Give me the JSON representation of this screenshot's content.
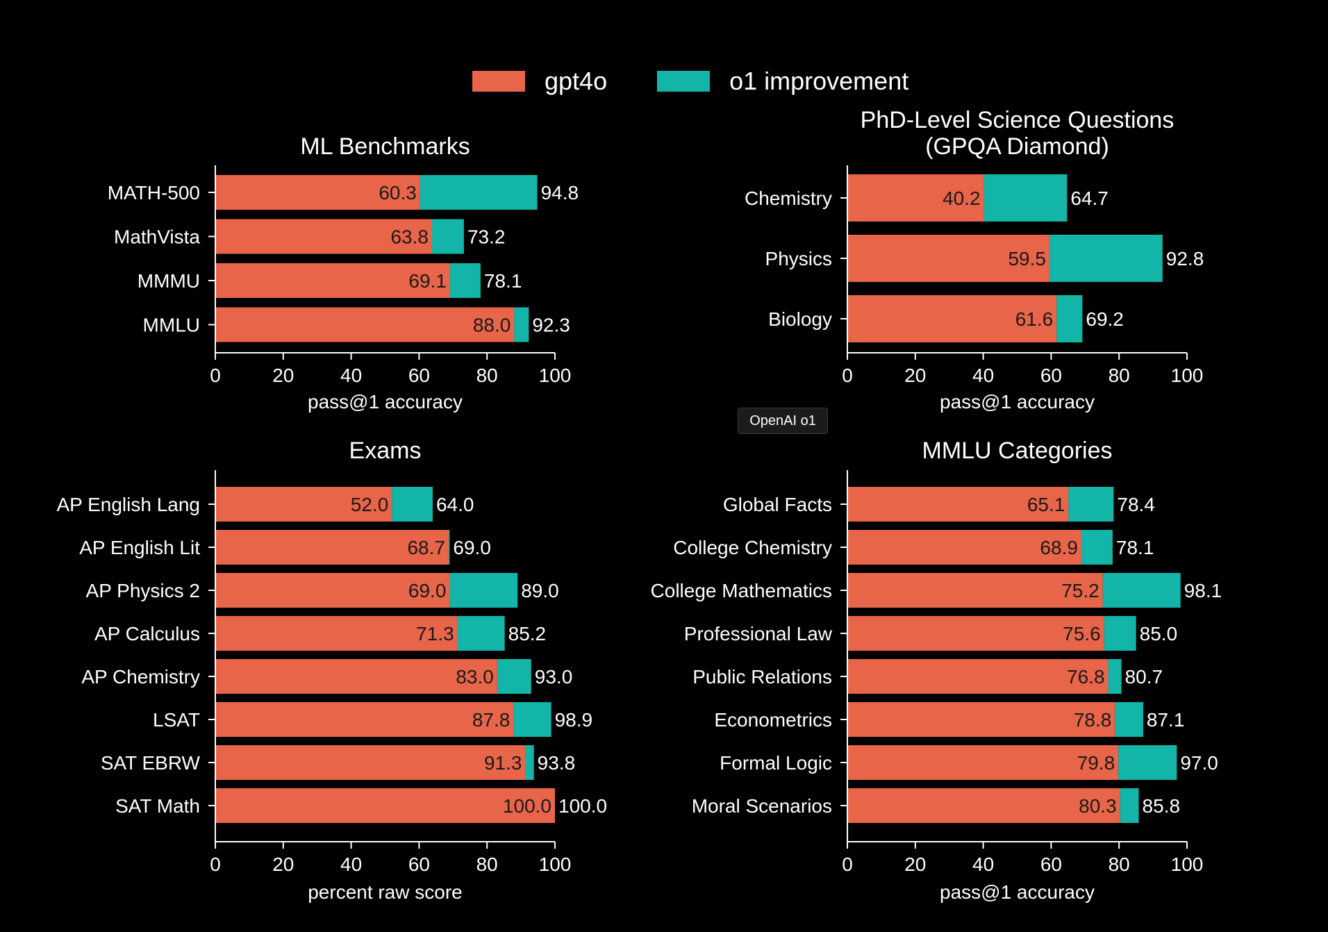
{
  "colors": {
    "gpt4o": "#e8654a",
    "improvement": "#12b5a8",
    "background": "#000000",
    "text": "#ffffff"
  },
  "legend": {
    "gpt4o_label": "gpt4o",
    "improvement_label": "o1 improvement"
  },
  "badge": {
    "label": "OpenAI o1"
  },
  "chart_data": [
    {
      "type": "bar",
      "title": "ML Benchmarks",
      "xlabel": "pass@1 accuracy",
      "xlim": [
        0,
        100
      ],
      "xticks": [
        "0",
        "20",
        "40",
        "60",
        "80",
        "100"
      ],
      "categories": [
        "MATH-500",
        "MathVista",
        "MMMU",
        "MMLU"
      ],
      "series": [
        {
          "name": "gpt4o",
          "values": [
            60.3,
            63.8,
            69.1,
            88.0
          ]
        },
        {
          "name": "o1 improvement",
          "values": [
            94.8,
            73.2,
            78.1,
            92.3
          ]
        }
      ],
      "base_labels": [
        "60.3",
        "63.8",
        "69.1",
        "88.0"
      ],
      "total_labels": [
        "94.8",
        "73.2",
        "78.1",
        "92.3"
      ]
    },
    {
      "type": "bar",
      "title": "PhD-Level Science Questions",
      "title2": "(GPQA Diamond)",
      "xlabel": "pass@1 accuracy",
      "xlim": [
        0,
        100
      ],
      "xticks": [
        "0",
        "20",
        "40",
        "60",
        "80",
        "100"
      ],
      "categories": [
        "Chemistry",
        "Physics",
        "Biology"
      ],
      "series": [
        {
          "name": "gpt4o",
          "values": [
            40.2,
            59.5,
            61.6
          ]
        },
        {
          "name": "o1 improvement",
          "values": [
            64.7,
            92.8,
            69.2
          ]
        }
      ],
      "base_labels": [
        "40.2",
        "59.5",
        "61.6"
      ],
      "total_labels": [
        "64.7",
        "92.8",
        "69.2"
      ]
    },
    {
      "type": "bar",
      "title": "Exams",
      "xlabel": "percent raw score",
      "xlim": [
        0,
        100
      ],
      "xticks": [
        "0",
        "20",
        "40",
        "60",
        "80",
        "100"
      ],
      "categories": [
        "AP English Lang",
        "AP English Lit",
        "AP Physics 2",
        "AP Calculus",
        "AP Chemistry",
        "LSAT",
        "SAT EBRW",
        "SAT Math"
      ],
      "series": [
        {
          "name": "gpt4o",
          "values": [
            52.0,
            68.7,
            69.0,
            71.3,
            83.0,
            87.8,
            91.3,
            100.0
          ]
        },
        {
          "name": "o1 improvement",
          "values": [
            64.0,
            69.0,
            89.0,
            85.2,
            93.0,
            98.9,
            93.8,
            100.0
          ]
        }
      ],
      "base_labels": [
        "52.0",
        "68.7",
        "69.0",
        "71.3",
        "83.0",
        "87.8",
        "91.3",
        "100.0"
      ],
      "total_labels": [
        "64.0",
        "69.0",
        "89.0",
        "85.2",
        "93.0",
        "98.9",
        "93.8",
        "100.0"
      ]
    },
    {
      "type": "bar",
      "title": "MMLU Categories",
      "xlabel": "pass@1 accuracy",
      "xlim": [
        0,
        100
      ],
      "xticks": [
        "0",
        "20",
        "40",
        "60",
        "80",
        "100"
      ],
      "categories": [
        "Global Facts",
        "College Chemistry",
        "College Mathematics",
        "Professional Law",
        "Public Relations",
        "Econometrics",
        "Formal Logic",
        "Moral Scenarios"
      ],
      "series": [
        {
          "name": "gpt4o",
          "values": [
            65.1,
            68.9,
            75.2,
            75.6,
            76.8,
            78.8,
            79.8,
            80.3
          ]
        },
        {
          "name": "o1 improvement",
          "values": [
            78.4,
            78.1,
            98.1,
            85.0,
            80.7,
            87.1,
            97.0,
            85.8
          ]
        }
      ],
      "base_labels": [
        "65.1",
        "68.9",
        "75.2",
        "75.6",
        "76.8",
        "78.8",
        "79.8",
        "80.3"
      ],
      "total_labels": [
        "78.4",
        "78.1",
        "98.1",
        "85.0",
        "80.7",
        "87.1",
        "97.0",
        "85.8"
      ]
    }
  ]
}
